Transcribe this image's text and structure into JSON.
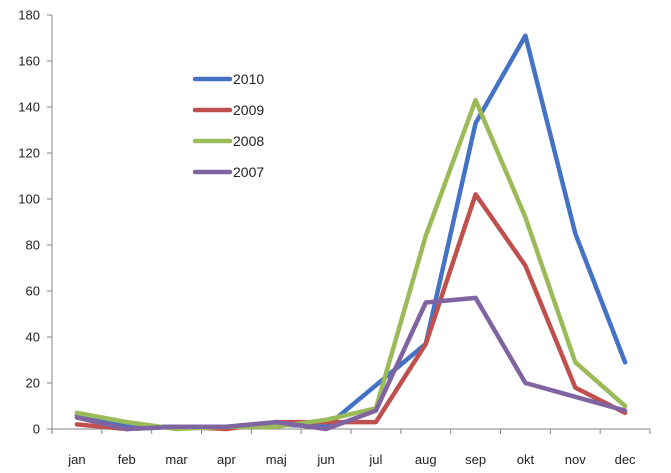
{
  "chart_data": {
    "type": "line",
    "title": "",
    "xlabel": "",
    "ylabel": "",
    "categories": [
      "jan",
      "feb",
      "mar",
      "apr",
      "maj",
      "jun",
      "jul",
      "aug",
      "sep",
      "okt",
      "nov",
      "dec"
    ],
    "ylim": [
      0,
      180
    ],
    "yticks": [
      0,
      20,
      40,
      60,
      80,
      100,
      120,
      140,
      160,
      180
    ],
    "grid": false,
    "legend_placement": "upper-left-center",
    "series": [
      {
        "name": "2010",
        "color": "#4472C4",
        "values": [
          6,
          1,
          1,
          1,
          2,
          1,
          19,
          37,
          133,
          171,
          85,
          29
        ]
      },
      {
        "name": "2009",
        "color": "#C0504D",
        "values": [
          2,
          0,
          1,
          0,
          3,
          3,
          3,
          37,
          102,
          71,
          18,
          7
        ]
      },
      {
        "name": "2008",
        "color": "#9BBB59",
        "values": [
          7,
          3,
          0,
          1,
          1,
          4,
          9,
          84,
          143,
          92,
          29,
          10
        ]
      },
      {
        "name": "2007",
        "color": "#8064A2",
        "values": [
          5,
          0,
          1,
          1,
          3,
          0,
          8,
          55,
          57,
          20,
          14,
          8
        ]
      }
    ]
  }
}
